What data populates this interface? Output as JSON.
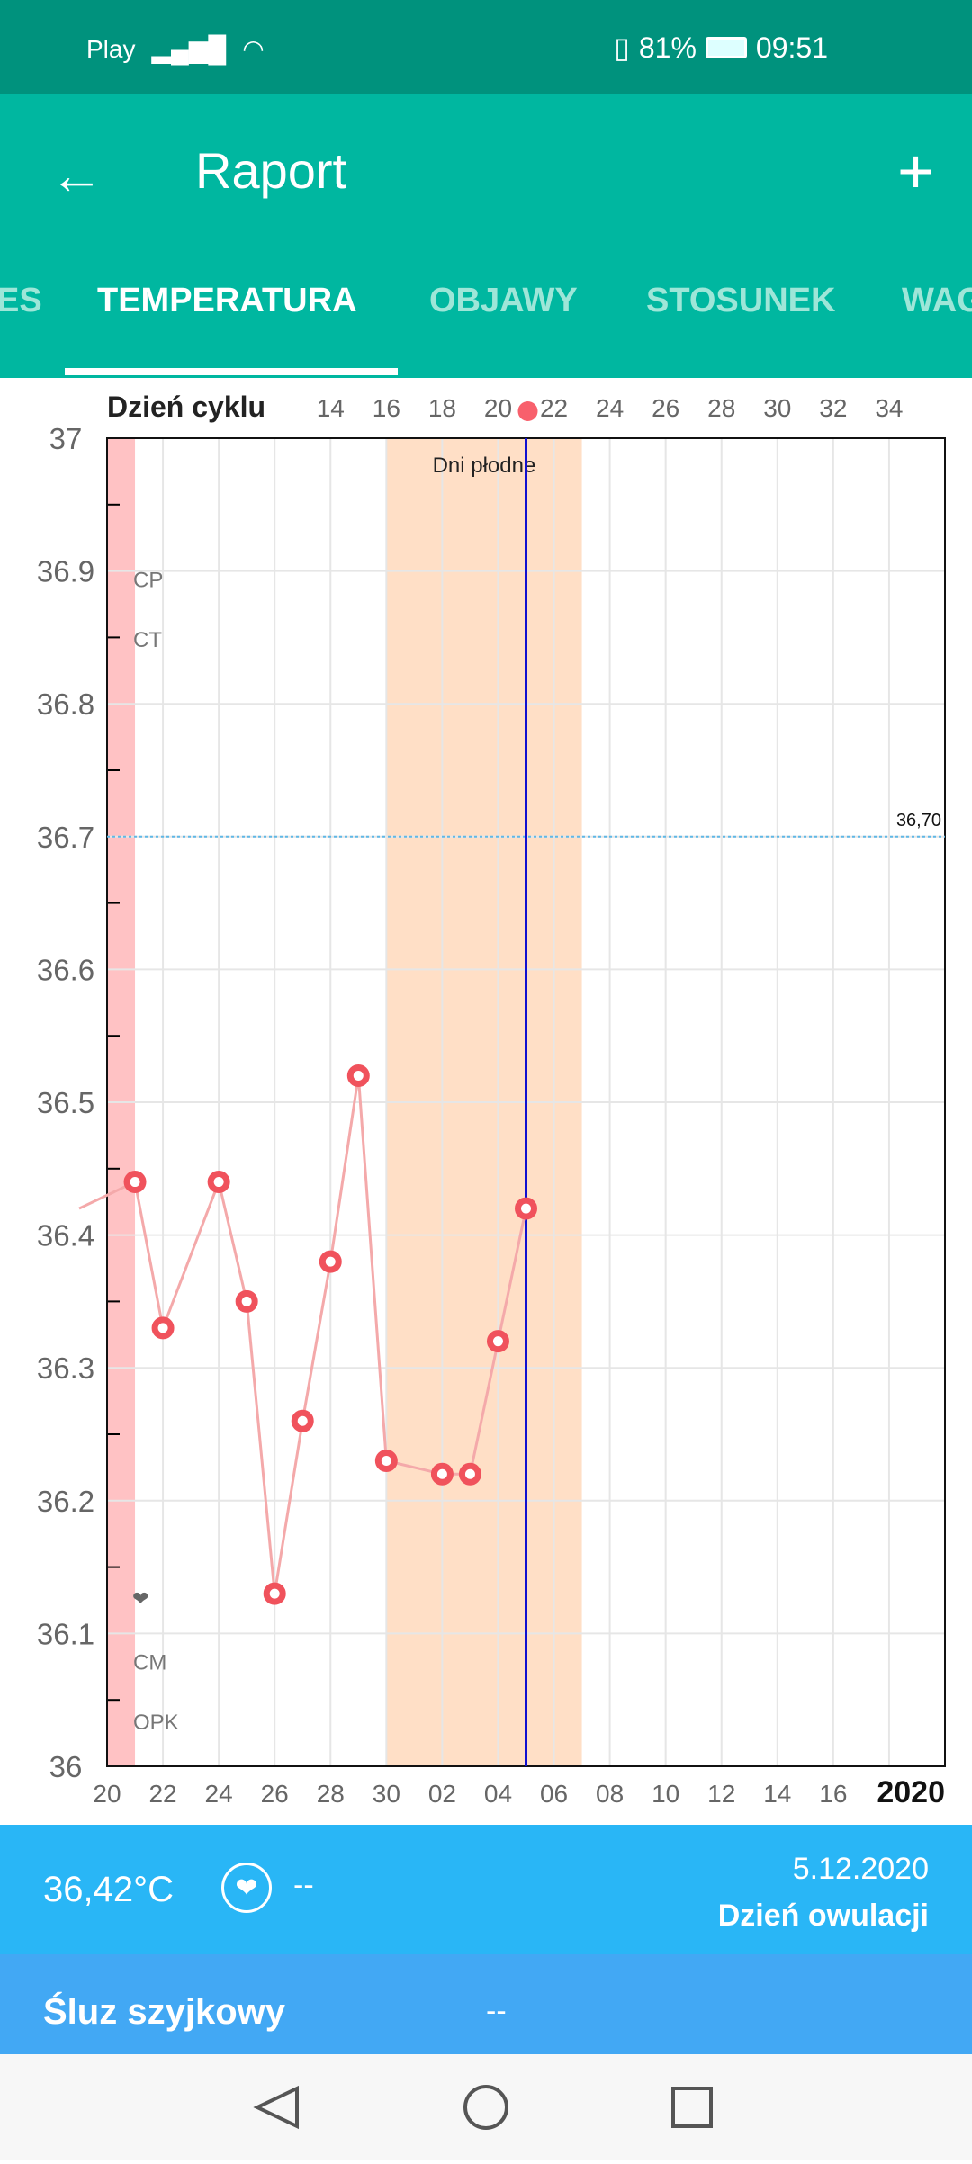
{
  "status_bar": {
    "carrier": "Play",
    "battery": "81%",
    "time": "09:51"
  },
  "app_bar": {
    "title": "Raport"
  },
  "tabs": [
    {
      "label": "ES"
    },
    {
      "label": "TEMPERATURA",
      "active": true
    },
    {
      "label": "OBJAWY"
    },
    {
      "label": "STOSUNEK"
    },
    {
      "label": "WAG"
    }
  ],
  "chart_data": {
    "type": "line",
    "top_axis_title": "Dzień cyklu",
    "cycle_day_labels": [
      "14",
      "16",
      "18",
      "20",
      "22",
      "24",
      "26",
      "28",
      "30",
      "32",
      "34"
    ],
    "date_labels": [
      "20",
      "22",
      "24",
      "26",
      "28",
      "30",
      "02",
      "04",
      "06",
      "08",
      "10",
      "12",
      "14",
      "16"
    ],
    "year_label": "2020",
    "y_ticks": [
      "37",
      "36.9",
      "36.8",
      "36.7",
      "36.6",
      "36.5",
      "36.4",
      "36.3",
      "36.2",
      "36.1",
      "36"
    ],
    "ylim": [
      36,
      37
    ],
    "x_range_days_from_nov20": [
      0,
      30
    ],
    "series": [
      {
        "name": "Temperatura",
        "points": [
          {
            "date": "19.11",
            "day": -1,
            "y": 36.42
          },
          {
            "date": "21.11",
            "day": 1,
            "y": 36.44
          },
          {
            "date": "22.11",
            "day": 2,
            "y": 36.33
          },
          {
            "date": "24.11",
            "day": 4,
            "y": 36.44
          },
          {
            "date": "25.11",
            "day": 5,
            "y": 36.35
          },
          {
            "date": "26.11",
            "day": 6,
            "y": 36.13
          },
          {
            "date": "27.11",
            "day": 7,
            "y": 36.26
          },
          {
            "date": "28.11",
            "day": 8,
            "y": 36.38
          },
          {
            "date": "29.11",
            "day": 9,
            "y": 36.52
          },
          {
            "date": "30.11",
            "day": 10,
            "y": 36.23
          },
          {
            "date": "2.12",
            "day": 12,
            "y": 36.22
          },
          {
            "date": "3.12",
            "day": 13,
            "y": 36.22
          },
          {
            "date": "4.12",
            "day": 14,
            "y": 36.32
          },
          {
            "date": "5.12",
            "day": 15,
            "y": 36.42
          }
        ]
      }
    ],
    "threshold": {
      "value": 36.7,
      "label": "36,70"
    },
    "menstruation_days": [
      0,
      1
    ],
    "fertile_window": {
      "label": "Dni płodne",
      "days": [
        10,
        17
      ]
    },
    "ovulation_day": 15,
    "row_labels": [
      "CP",
      "CT",
      "CM",
      "OPK"
    ],
    "colors": {
      "line": "#f4a9aa",
      "point": "#f0525c",
      "fertile": "#ffdfc6",
      "period": "#ffc2c4",
      "ovulation": "#1010d0",
      "threshold": "#5fb8e6"
    }
  },
  "info": {
    "temperature": "36,42°C",
    "intercourse": "--",
    "date": "5.12.2020",
    "status": "Dzień owulacji"
  },
  "mucus": {
    "label": "Śluz szyjkowy",
    "value": "--"
  }
}
